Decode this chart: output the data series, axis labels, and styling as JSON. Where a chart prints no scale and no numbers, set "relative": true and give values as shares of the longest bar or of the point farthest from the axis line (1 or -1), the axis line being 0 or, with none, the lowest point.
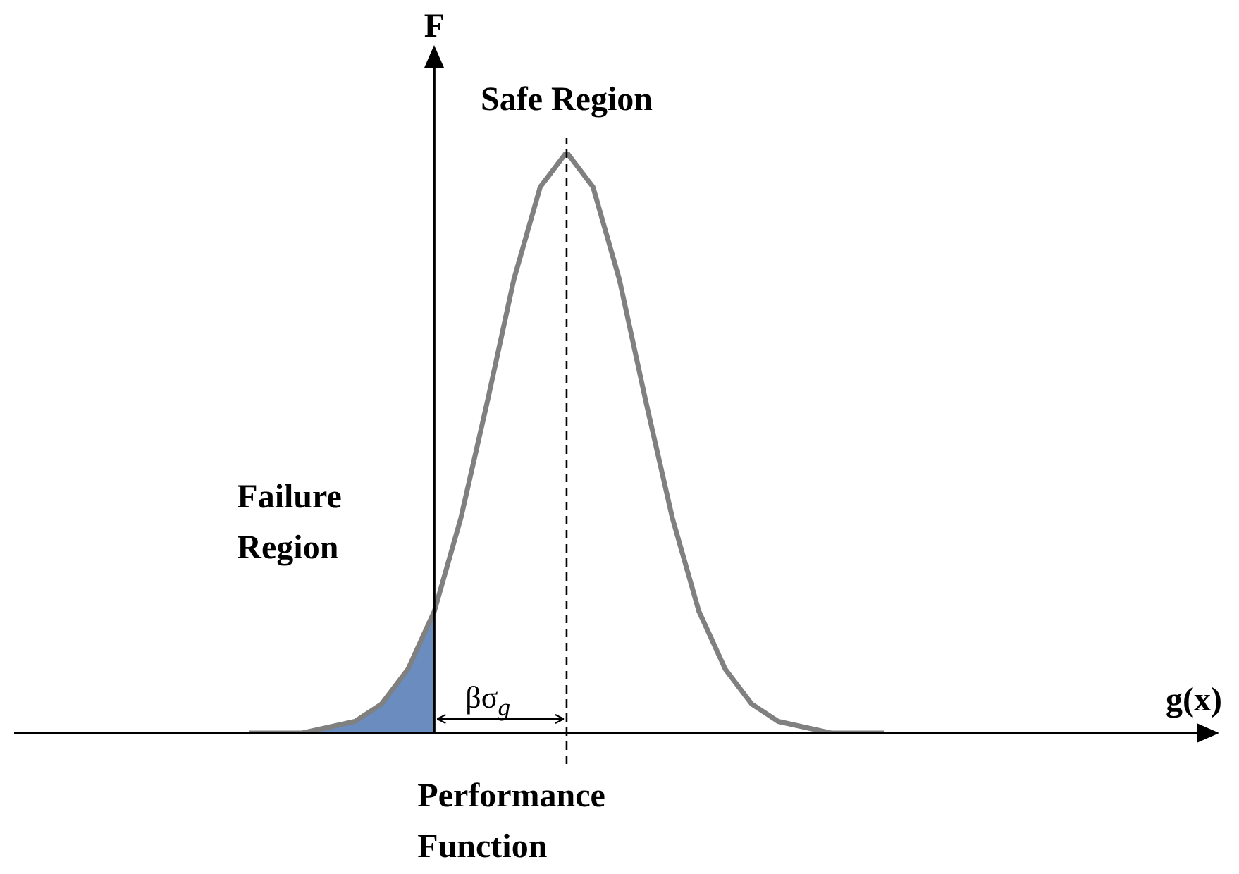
{
  "chart_data": {
    "type": "line",
    "relative": true,
    "xlabel": "g(x)",
    "ylabel": "F",
    "categories": [
      null,
      null,
      null,
      null,
      null,
      null,
      null,
      null,
      null,
      null,
      null,
      null,
      null,
      null,
      null,
      null,
      null,
      null,
      null,
      null,
      null,
      null,
      null,
      null,
      null,
      null,
      null,
      null,
      null,
      null,
      null,
      null,
      null,
      null,
      null,
      null,
      null,
      null,
      null,
      null,
      null,
      null,
      null,
      null,
      null,
      null,
      null
    ],
    "series": [
      {
        "color": "#808080",
        "values": [
          null,
          null,
          null,
          null,
          null,
          null,
          null,
          null,
          null,
          0,
          0,
          0,
          0.01,
          0.02,
          0.05,
          0.11,
          0.21,
          0.37,
          0.57,
          0.78,
          0.94,
          1,
          0.94,
          0.78,
          0.57,
          0.37,
          0.21,
          0.11,
          0.05,
          0.02,
          0.01,
          0,
          0,
          0,
          null,
          null,
          null,
          null,
          null,
          null,
          null,
          null,
          null,
          null,
          null,
          null,
          null
        ]
      },
      {
        "type": "area",
        "color": "#6a8cbf",
        "values": [
          null,
          null,
          null,
          null,
          null,
          null,
          null,
          null,
          null,
          0,
          0,
          0,
          0.01,
          0.02,
          0.05,
          0.11,
          0.21,
          null,
          null,
          null,
          null,
          null,
          null,
          null,
          null,
          null,
          null,
          null,
          null,
          null,
          null,
          null,
          null,
          null,
          null,
          null,
          null,
          null,
          null,
          null,
          null,
          null,
          null,
          null,
          null,
          null,
          null
        ]
      }
    ],
    "annotations": [
      "Safe Region",
      "Failure Region",
      "βσ$_{g}$",
      "Performance Function"
    ],
    "legend": false,
    "grid": false
  }
}
